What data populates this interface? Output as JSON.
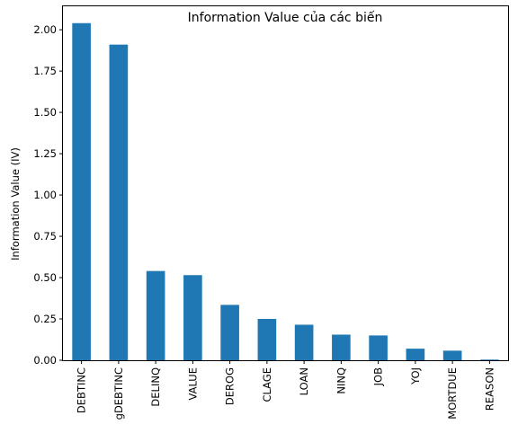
{
  "chart_data": {
    "type": "bar",
    "title": "Information Value của các biến",
    "xlabel": "",
    "ylabel": "Information Value (IV)",
    "categories": [
      "DEBTINC",
      "gDEBTINC",
      "DELINQ",
      "VALUE",
      "DEROG",
      "CLAGE",
      "LOAN",
      "NINQ",
      "JOB",
      "YOJ",
      "MORTDUE",
      "REASON"
    ],
    "values": [
      2.04,
      1.91,
      0.54,
      0.515,
      0.335,
      0.25,
      0.215,
      0.155,
      0.15,
      0.07,
      0.058,
      0.004
    ],
    "ylim": [
      0,
      2.142
    ],
    "yticks": [
      "0.00",
      "0.25",
      "0.50",
      "0.75",
      "1.00",
      "1.25",
      "1.50",
      "1.75",
      "2.00"
    ],
    "bar_color": "#1f77b4",
    "grid": false,
    "legend": "none"
  }
}
